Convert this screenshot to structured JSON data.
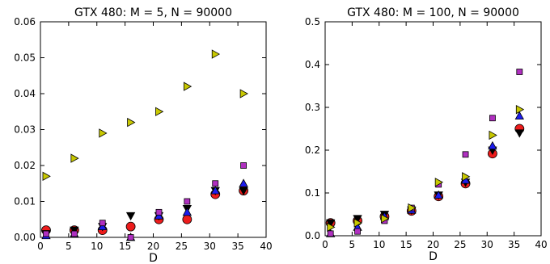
{
  "colors": {
    "series_red": "#ee1c1c",
    "series_black": "#000000",
    "series_blue": "#1c1cee",
    "series_magenta": "#b030c0",
    "series_yellow": "#c8c800"
  },
  "chart_data": [
    {
      "type": "scatter",
      "title": "GTX 480: M = 5, N = 90000",
      "xlabel": "D",
      "ylabel": "",
      "xlim": [
        0,
        40
      ],
      "ylim": [
        0,
        0.06
      ],
      "xticks": [
        "0",
        "5",
        "10",
        "15",
        "20",
        "25",
        "30",
        "35",
        "40"
      ],
      "yticks": [
        "0.00",
        "0.01",
        "0.02",
        "0.03",
        "0.04",
        "0.05",
        "0.06"
      ],
      "grid": false,
      "series": [
        {
          "marker": "circle",
          "color": "#ee1c1c",
          "x": [
            1,
            6,
            11,
            16,
            21,
            26,
            31,
            36
          ],
          "y": [
            0.002,
            0.002,
            0.002,
            0.003,
            0.005,
            0.005,
            0.012,
            0.013
          ]
        },
        {
          "marker": "triangle-down",
          "color": "#000000",
          "x": [
            1,
            6,
            11,
            16,
            21,
            26,
            31,
            36
          ],
          "y": [
            0.001,
            0.002,
            0.003,
            0.006,
            0.006,
            0.008,
            0.013,
            0.013
          ]
        },
        {
          "marker": "triangle-up",
          "color": "#1c1cee",
          "x": [
            1,
            6,
            11,
            16,
            21,
            26,
            31,
            36
          ],
          "y": [
            0.0005,
            0.001,
            0.003,
            0.0,
            0.006,
            0.007,
            0.013,
            0.015
          ]
        },
        {
          "marker": "square",
          "color": "#b030c0",
          "x": [
            1,
            6,
            11,
            16,
            21,
            26,
            31,
            36
          ],
          "y": [
            0.001,
            0.001,
            0.004,
            0.0,
            0.007,
            0.01,
            0.015,
            0.02
          ]
        },
        {
          "marker": "triangle-right",
          "color": "#c8c800",
          "x": [
            1,
            6,
            11,
            16,
            21,
            26,
            31,
            36
          ],
          "y": [
            0.017,
            0.022,
            0.029,
            0.032,
            0.035,
            0.042,
            0.051,
            0.04
          ]
        }
      ]
    },
    {
      "type": "scatter",
      "title": "GTX 480: M = 100, N = 90000",
      "xlabel": "D",
      "ylabel": "",
      "xlim": [
        0,
        40
      ],
      "ylim": [
        0,
        0.5
      ],
      "xticks": [
        "0",
        "5",
        "10",
        "15",
        "20",
        "25",
        "30",
        "35",
        "40"
      ],
      "yticks": [
        "0.0",
        "0.1",
        "0.2",
        "0.3",
        "0.4",
        "0.5"
      ],
      "grid": false,
      "series": [
        {
          "marker": "circle",
          "color": "#ee1c1c",
          "x": [
            1,
            6,
            11,
            16,
            21,
            26,
            31,
            36
          ],
          "y": [
            0.03,
            0.035,
            0.045,
            0.058,
            0.092,
            0.122,
            0.192,
            0.25
          ]
        },
        {
          "marker": "triangle-down",
          "color": "#000000",
          "x": [
            1,
            6,
            11,
            16,
            21,
            26,
            31,
            36
          ],
          "y": [
            0.03,
            0.04,
            0.05,
            0.06,
            0.095,
            0.125,
            0.2,
            0.24
          ]
        },
        {
          "marker": "triangle-up",
          "color": "#1c1cee",
          "x": [
            1,
            6,
            11,
            16,
            21,
            26,
            31,
            36
          ],
          "y": [
            0.005,
            0.02,
            0.045,
            0.06,
            0.095,
            0.13,
            0.21,
            0.28
          ]
        },
        {
          "marker": "square",
          "color": "#b030c0",
          "x": [
            1,
            6,
            11,
            16,
            21,
            26,
            31,
            36
          ],
          "y": [
            0.005,
            0.01,
            0.035,
            0.065,
            0.12,
            0.19,
            0.275,
            0.383
          ]
        },
        {
          "marker": "triangle-right",
          "color": "#c8c800",
          "x": [
            1,
            6,
            11,
            16,
            21,
            26,
            31,
            36
          ],
          "y": [
            0.02,
            0.03,
            0.04,
            0.065,
            0.125,
            0.138,
            0.235,
            0.295
          ]
        }
      ]
    }
  ]
}
